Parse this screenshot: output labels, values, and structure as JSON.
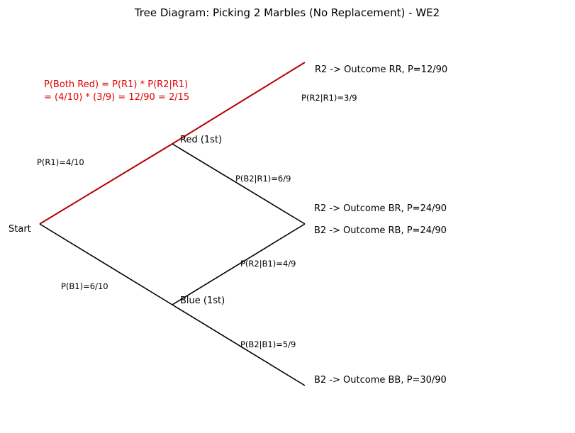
{
  "title": "Tree Diagram: Picking 2 Marbles (No Replacement) - WE2",
  "colors": {
    "highlight": "#b30000",
    "annotation": "#e00000",
    "default": "#000000"
  },
  "nodes": {
    "start": "Start",
    "red_first": "Red (1st)",
    "blue_first": "Blue (1st)"
  },
  "outcomes": {
    "rr": "R2 -> Outcome RR, P=12/90",
    "br": "R2 -> Outcome BR, P=24/90",
    "rb": "B2 -> Outcome RB, P=24/90",
    "bb": "B2 -> Outcome BB, P=30/90"
  },
  "probabilities": {
    "r1": "P(R1)=4/10",
    "b1": "P(B1)=6/10",
    "r2_given_r1": "P(R2|R1)=3/9",
    "b2_given_r1": "P(B2|R1)=6/9",
    "r2_given_b1": "P(R2|B1)=4/9",
    "b2_given_b1": "P(B2|B1)=5/9"
  },
  "annotation": {
    "line1": "P(Both Red) = P(R1) * P(R2|R1)",
    "line2": "= (4/10) * (3/9) = 12/90 = 2/15"
  }
}
